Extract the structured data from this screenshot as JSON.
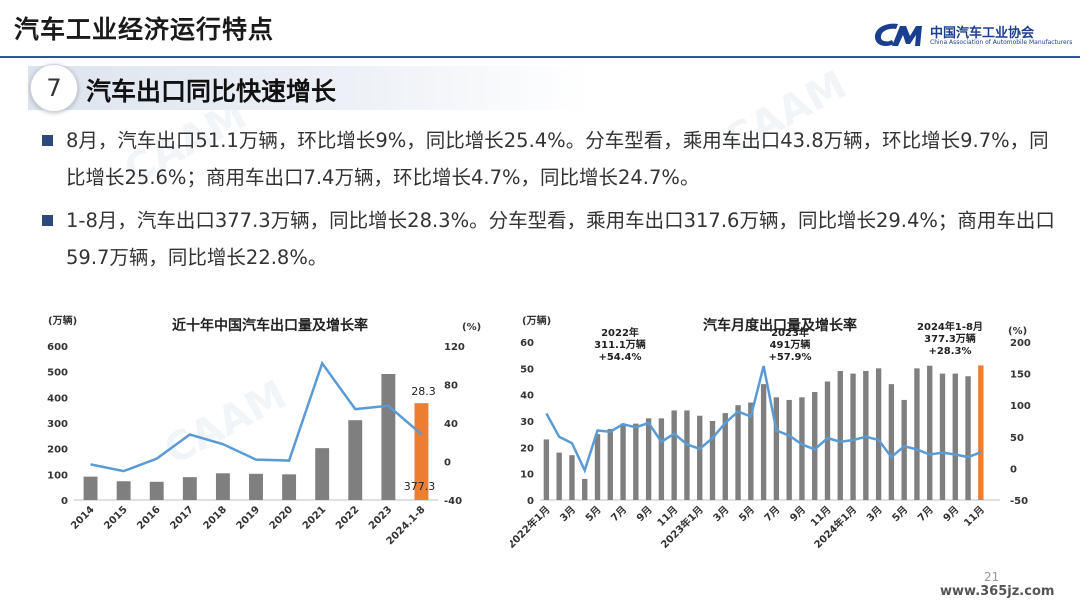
{
  "header": {
    "title": "汽车工业经济运行特点"
  },
  "logo": {
    "cn": "中国汽车工业协会",
    "en": "China Association of Automobile Manufacturers"
  },
  "section": {
    "number": "7",
    "title": "汽车出口同比快速增长"
  },
  "bullets": [
    "8月，汽车出口51.1万辆，环比增长9%，同比增长25.4%。分车型看，乘用车出口43.8万辆，环比增长9.7%，同比增长25.6%；商用车出口7.4万辆，环比增长4.7%，同比增长24.7%。",
    "1-8月，汽车出口377.3万辆，同比增长28.3%。分车型看，乘用车出口317.6万辆，同比增长29.4%；商用车出口59.7万辆，同比增长22.8%。"
  ],
  "colors": {
    "bar": "#7f7f7f",
    "highlight": "#ed7d31",
    "line": "#5b9bd5",
    "accent": "#2f5597"
  },
  "chart_data": [
    {
      "type": "bar",
      "title": "近十年中国汽车出口量及增长率",
      "left_unit": "(万辆)",
      "right_unit": "(%)",
      "categories": [
        "2014",
        "2015",
        "2016",
        "2017",
        "2018",
        "2019",
        "2020",
        "2021",
        "2022",
        "2023",
        "2024.1-8"
      ],
      "series": [
        {
          "values": [
            91,
            73,
            71,
            89,
            104,
            102,
            100,
            202,
            311,
            491,
            377.3
          ]
        },
        {
          "values": [
            -3,
            -10,
            3,
            28,
            18,
            2,
            1,
            102,
            54.4,
            57.9,
            28.3
          ]
        }
      ],
      "highlight_index": 10,
      "labels": {
        "rate": "28.3",
        "volume": "377.3"
      },
      "ylim": [
        0,
        600
      ],
      "y2lim": [
        -40,
        120
      ],
      "yticks": [
        "0",
        "100",
        "200",
        "300",
        "400",
        "500",
        "600"
      ],
      "y2ticks": [
        "-40",
        "0",
        "40",
        "80",
        "120"
      ]
    },
    {
      "type": "bar",
      "title": "汽车月度出口量及增长率",
      "left_unit": "(万辆)",
      "right_unit": "(%)",
      "x_tick_labels": [
        "2022年1月",
        "3月",
        "5月",
        "7月",
        "9月",
        "11月",
        "2023年1月",
        "3月",
        "5月",
        "7月",
        "9月",
        "11月",
        "2024年1月",
        "3月",
        "5月",
        "7月",
        "9月",
        "11月"
      ],
      "series": [
        {
          "values": [
            23,
            18,
            17,
            8,
            25,
            27,
            29,
            29,
            31,
            31,
            34,
            34,
            32,
            30,
            33,
            36,
            37,
            44,
            39,
            38,
            39,
            41,
            45,
            49,
            48,
            49,
            50,
            44,
            38,
            50,
            51,
            48,
            48,
            47,
            51.1
          ]
        },
        {
          "values": [
            87,
            50,
            40,
            -3,
            60,
            58,
            70,
            65,
            72,
            42,
            55,
            38,
            31,
            48,
            72,
            90,
            82,
            162,
            60,
            52,
            38,
            30,
            48,
            42,
            45,
            50,
            45,
            18,
            35,
            30,
            22,
            25,
            22,
            18,
            25.4
          ]
        }
      ],
      "highlight_index": 34,
      "ylim": [
        0,
        60
      ],
      "y2lim": [
        -50,
        200
      ],
      "yticks": [
        "0",
        "10",
        "20",
        "30",
        "40",
        "50",
        "60"
      ],
      "y2ticks": [
        "-50",
        "0",
        "50",
        "100",
        "150",
        "200"
      ],
      "annotations": [
        {
          "year": "2022年",
          "volume": "311.1万辆",
          "rate": "+54.4%"
        },
        {
          "year": "2023年",
          "volume": "491万辆",
          "rate": "+57.9%"
        },
        {
          "year": "2024年1-8月",
          "volume": "377.3万辆",
          "rate": "+28.3%"
        }
      ]
    }
  ],
  "footer": {
    "page": "21",
    "site": "www.365jz.com"
  }
}
